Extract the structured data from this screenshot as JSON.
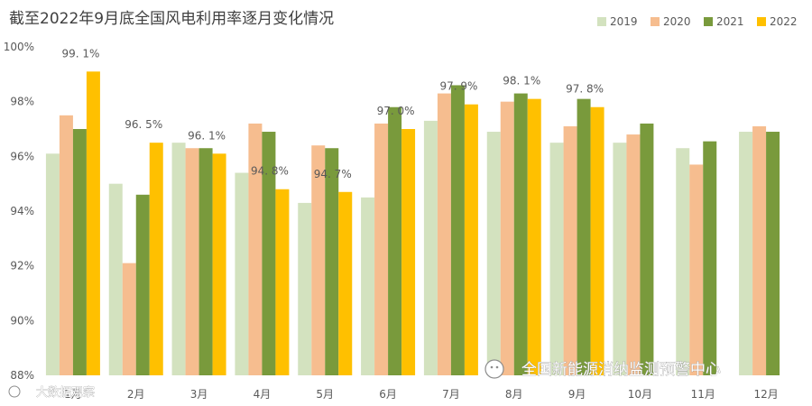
{
  "chart_data": {
    "type": "bar",
    "title": "截至2022年9月底全国风电利用率逐月变化情况",
    "categories": [
      "1月",
      "2月",
      "3月",
      "4月",
      "5月",
      "6月",
      "7月",
      "8月",
      "9月",
      "10月",
      "11月",
      "12月"
    ],
    "series": [
      {
        "name": "2019",
        "color": "#d3e2bf",
        "values": [
          96.1,
          95.0,
          96.5,
          95.4,
          94.3,
          94.5,
          97.3,
          96.9,
          96.5,
          96.5,
          96.3,
          96.9
        ]
      },
      {
        "name": "2020",
        "color": "#f6bd8f",
        "values": [
          97.5,
          92.1,
          96.3,
          97.2,
          96.4,
          97.2,
          98.3,
          98.0,
          97.1,
          96.8,
          95.7,
          97.1
        ]
      },
      {
        "name": "2021",
        "color": "#799a3c",
        "values": [
          97.0,
          94.6,
          96.3,
          96.9,
          96.3,
          97.8,
          98.6,
          98.3,
          98.1,
          97.2,
          96.55,
          96.9
        ]
      },
      {
        "name": "2022",
        "color": "#ffc000",
        "values": [
          99.1,
          96.5,
          96.1,
          94.8,
          94.7,
          97.0,
          97.9,
          98.1,
          97.8,
          null,
          null,
          null
        ]
      }
    ],
    "data_labels": [
      "99. 1%",
      "96. 5%",
      "96. 1%",
      "94. 8%",
      "94. 7%",
      "97. 0%",
      "97. 9%",
      "98. 1%",
      "97. 8%"
    ],
    "ylim": [
      88,
      100
    ],
    "yticks": [
      "88%",
      "90%",
      "92%",
      "94%",
      "96%",
      "98%",
      "100%"
    ],
    "ytick_values": [
      88,
      90,
      92,
      94,
      96,
      98,
      100
    ],
    "xlabel": "",
    "ylabel": "",
    "legend_position": "top-right",
    "grid": false
  },
  "watermarks": {
    "right": "全国新能源消纳监测预警中心",
    "left": "大数据观察"
  }
}
